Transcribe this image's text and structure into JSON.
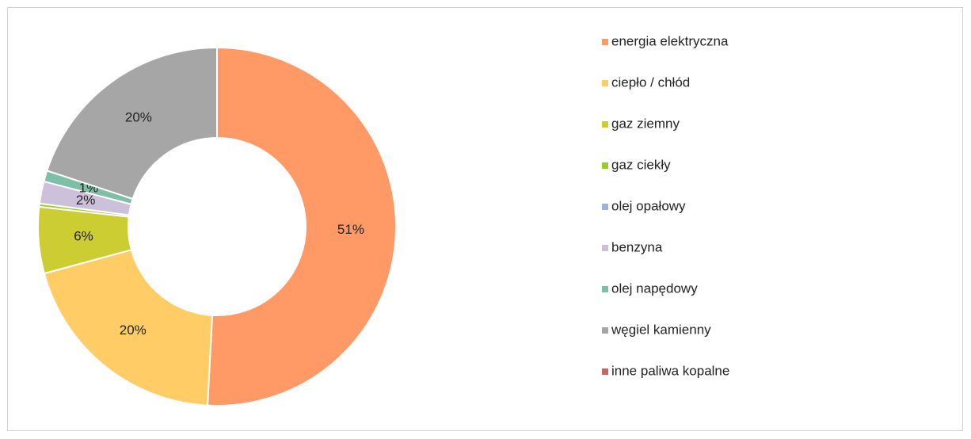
{
  "chart_data": {
    "type": "donut",
    "categories": [
      "energia elektryczna",
      "ciepło / chłód",
      "gaz ziemny",
      "gaz ciekły",
      "olej opałowy",
      "benzyna",
      "olej napędowy",
      "węgiel kamienny",
      "inne paliwa kopalne"
    ],
    "values": [
      51,
      20,
      6,
      0.3,
      0,
      2,
      1,
      20,
      0
    ],
    "value_labels": [
      "51%",
      "20%",
      "6%",
      null,
      null,
      "2%",
      "1%",
      "20%",
      null
    ],
    "colors": [
      "#FF9966",
      "#FFCC66",
      "#CCCC33",
      "#99CC33",
      "#99B3D9",
      "#CCC0DA",
      "#7FBFA8",
      "#A6A6A6",
      "#CC6666"
    ],
    "legend": "right"
  }
}
